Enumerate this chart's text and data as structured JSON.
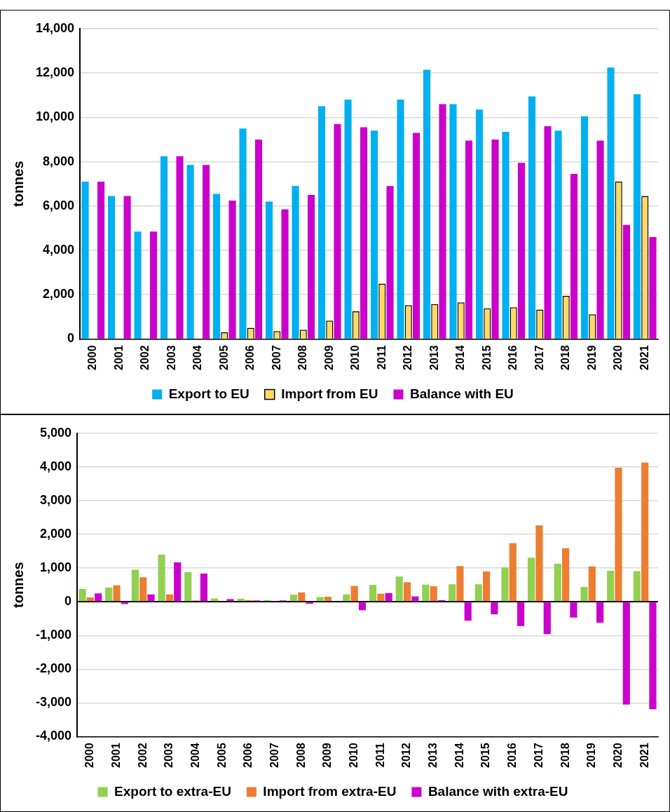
{
  "chart_data": [
    {
      "type": "bar",
      "ylabel": "tonnes",
      "categories": [
        "2000",
        "2001",
        "2002",
        "2003",
        "2004",
        "2005",
        "2006",
        "2007",
        "2008",
        "2009",
        "2010",
        "2011",
        "2012",
        "2013",
        "2014",
        "2015",
        "2016",
        "2017",
        "2018",
        "2019",
        "2020",
        "2021"
      ],
      "series": [
        {
          "name": "Export to EU",
          "color": "#00b0f0",
          "values": [
            7100,
            6450,
            4850,
            8250,
            7850,
            6550,
            9500,
            6200,
            6900,
            10500,
            10800,
            9400,
            10800,
            12150,
            10600,
            10350,
            9350,
            10950,
            9400,
            10050,
            12250,
            11050
          ]
        },
        {
          "name": "Import from EU",
          "color": "#ffd966",
          "values": [
            0,
            0,
            0,
            0,
            0,
            300,
            500,
            350,
            420,
            830,
            1250,
            2500,
            1520,
            1570,
            1650,
            1380,
            1430,
            1330,
            1940,
            1110,
            7100,
            6450
          ]
        },
        {
          "name": "Balance with EU",
          "color": "#cc00cc",
          "values": [
            7100,
            6450,
            4850,
            8250,
            7850,
            6250,
            9000,
            5850,
            6500,
            9700,
            9550,
            6900,
            9300,
            10600,
            8950,
            9000,
            7950,
            9600,
            7450,
            8950,
            5150,
            4600
          ]
        }
      ],
      "ylim": [
        0,
        14000
      ],
      "yticks": [
        {
          "value": 0,
          "label": "0"
        },
        {
          "value": 2000,
          "label": "2,000"
        },
        {
          "value": 4000,
          "label": "4,000"
        },
        {
          "value": 6000,
          "label": "6,000"
        },
        {
          "value": 8000,
          "label": "8,000"
        },
        {
          "value": 10000,
          "label": "10,000"
        },
        {
          "value": 12000,
          "label": "12,000"
        },
        {
          "value": 14000,
          "label": "14,000"
        }
      ],
      "grid": "y",
      "legend": "bottom"
    },
    {
      "type": "bar",
      "ylabel": "tonnes",
      "categories": [
        "2000",
        "2001",
        "2002",
        "2003",
        "2004",
        "2005",
        "2006",
        "2007",
        "2008",
        "2009",
        "2010",
        "2011",
        "2012",
        "2013",
        "2014",
        "2015",
        "2016",
        "2017",
        "2018",
        "2019",
        "2020",
        "2021"
      ],
      "series": [
        {
          "name": "Export to extra-EU",
          "color": "#92d050",
          "values": [
            380,
            420,
            950,
            1400,
            880,
            100,
            90,
            50,
            210,
            140,
            220,
            500,
            750,
            510,
            520,
            520,
            1020,
            1310,
            1130,
            440,
            920,
            910
          ]
        },
        {
          "name": "Import from extra-EU",
          "color": "#ed7d31",
          "values": [
            130,
            490,
            730,
            220,
            40,
            null,
            50,
            null,
            280,
            150,
            470,
            240,
            580,
            460,
            1060,
            900,
            1740,
            2270,
            1590,
            1050,
            3980,
            4130
          ]
        },
        {
          "name": "Balance with extra-EU",
          "color": "#cc00cc",
          "values": [
            250,
            -70,
            220,
            1170,
            840,
            80,
            40,
            40,
            -60,
            0,
            -250,
            260,
            160,
            50,
            -560,
            -370,
            -720,
            -960,
            -470,
            -620,
            -3050,
            -3190
          ]
        }
      ],
      "ylim": [
        -4000,
        5000
      ],
      "yticks": [
        {
          "value": -4000,
          "label": "-4,000"
        },
        {
          "value": -3000,
          "label": "-3,000"
        },
        {
          "value": -2000,
          "label": "-2,000"
        },
        {
          "value": -1000,
          "label": "-1,000"
        },
        {
          "value": 0,
          "label": "0"
        },
        {
          "value": 1000,
          "label": "1,000"
        },
        {
          "value": 2000,
          "label": "2,000"
        },
        {
          "value": 3000,
          "label": "3,000"
        },
        {
          "value": 4000,
          "label": "4,000"
        },
        {
          "value": 5000,
          "label": "5,000"
        }
      ],
      "grid": "y",
      "legend": "bottom"
    }
  ]
}
